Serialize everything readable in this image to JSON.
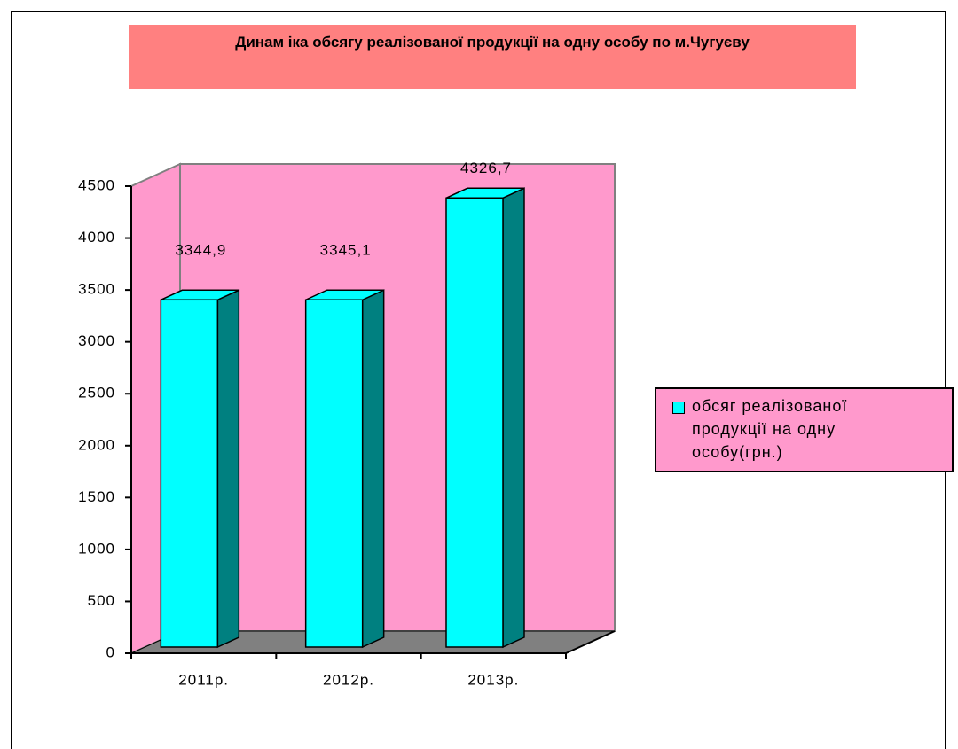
{
  "chart_data": {
    "type": "bar3d",
    "title": "Динам іка обсягу реалізованої продукції на одну особу по м.Чугуєву",
    "categories": [
      "2011р.",
      "2012р.",
      "2013р."
    ],
    "series": [
      {
        "name": "обсяг реалізованої продукції  на одну особу(грн.)",
        "color": "#00ffff",
        "values": [
          3344.9,
          3345.1,
          4326.7
        ],
        "value_labels": [
          "3344,9",
          "3345,1",
          "4326,7"
        ]
      }
    ],
    "ylim": [
      0,
      4500
    ],
    "yticks": [
      0,
      500,
      1000,
      1500,
      2000,
      2500,
      3000,
      3500,
      4000,
      4500
    ],
    "legend": "right"
  }
}
